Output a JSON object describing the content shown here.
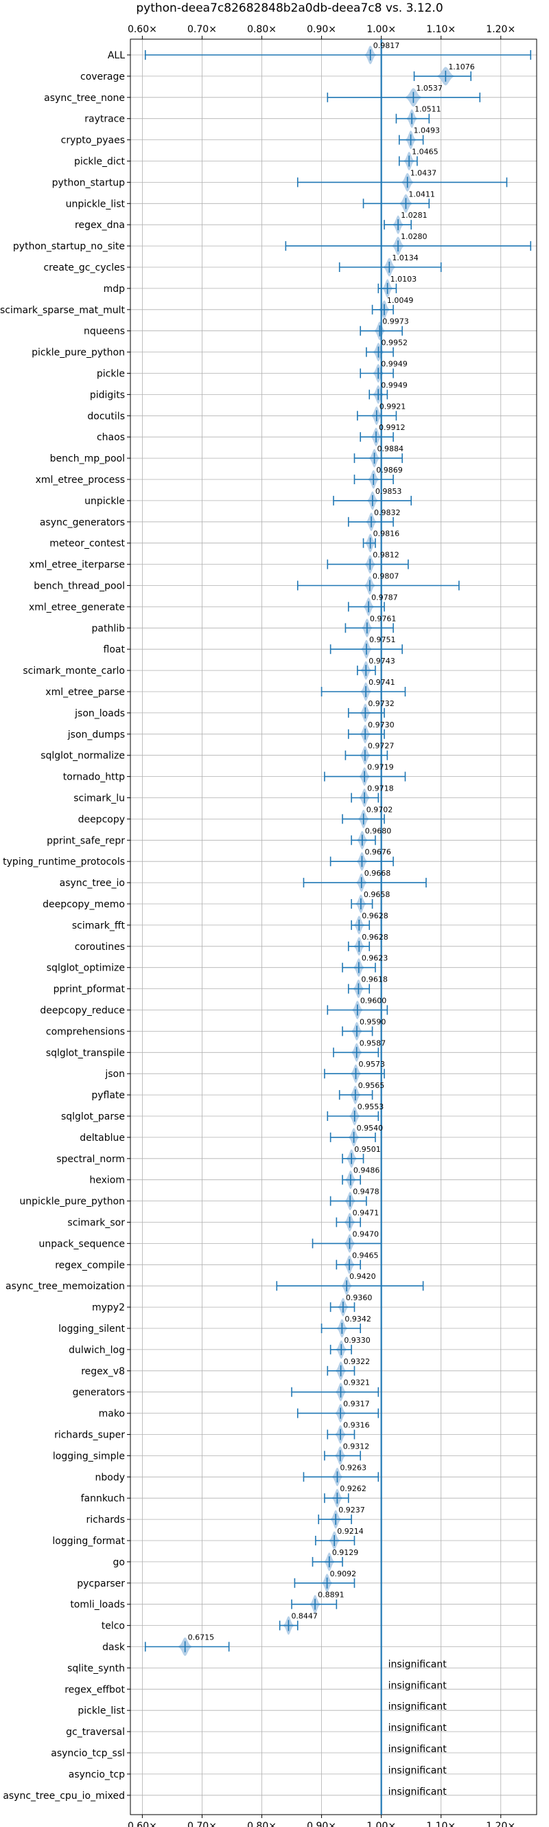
{
  "chart_data": {
    "type": "violin",
    "title": "python-deea7c82682848b2a0db-deea7c8 vs. 3.12.0",
    "xlim": [
      0.58,
      1.26
    ],
    "xticks": [
      0.6,
      0.7,
      0.8,
      0.9,
      1.0,
      1.1,
      1.2
    ],
    "xtick_labels": [
      "0.60×",
      "0.70×",
      "0.80×",
      "0.90×",
      "1.00×",
      "1.10×",
      "1.20×"
    ],
    "reference_line": 1.0,
    "grid": true,
    "colors": {
      "line": "#1f77b4",
      "violin": "#aecbe5",
      "grid": "#b0b0b0"
    },
    "insignificant_text": "insignificant",
    "benchmarks": [
      {
        "name": "ALL",
        "value": 0.9817,
        "label": "0.9817",
        "min": 0.605,
        "max": 1.25,
        "width": 0.0038
      },
      {
        "name": "coverage",
        "value": 1.1076,
        "label": "1.1076",
        "min": 1.055,
        "max": 1.15,
        "width": 0.0058
      },
      {
        "name": "async_tree_none",
        "value": 1.0537,
        "label": "1.0537",
        "min": 0.91,
        "max": 1.165,
        "width": 0.0055
      },
      {
        "name": "raytrace",
        "value": 1.0511,
        "label": "1.0511",
        "min": 1.025,
        "max": 1.08,
        "width": 0.0035
      },
      {
        "name": "crypto_pyaes",
        "value": 1.0493,
        "label": "1.0493",
        "min": 1.03,
        "max": 1.07,
        "width": 0.0035
      },
      {
        "name": "pickle_dict",
        "value": 1.0465,
        "label": "1.0465",
        "min": 1.03,
        "max": 1.06,
        "width": 0.0035
      },
      {
        "name": "python_startup",
        "value": 1.0437,
        "label": "1.0437",
        "min": 0.86,
        "max": 1.21,
        "width": 0.004
      },
      {
        "name": "unpickle_list",
        "value": 1.0411,
        "label": "1.0411",
        "min": 0.97,
        "max": 1.08,
        "width": 0.0042
      },
      {
        "name": "regex_dna",
        "value": 1.0281,
        "label": "1.0281",
        "min": 1.005,
        "max": 1.05,
        "width": 0.0035
      },
      {
        "name": "python_startup_no_site",
        "value": 1.028,
        "label": "1.0280",
        "min": 0.84,
        "max": 1.25,
        "width": 0.004
      },
      {
        "name": "create_gc_cycles",
        "value": 1.0134,
        "label": "1.0134",
        "min": 0.93,
        "max": 1.1,
        "width": 0.004
      },
      {
        "name": "mdp",
        "value": 1.0103,
        "label": "1.0103",
        "min": 0.995,
        "max": 1.025,
        "width": 0.0035
      },
      {
        "name": "scimark_sparse_mat_mult",
        "value": 1.0049,
        "label": "1.0049",
        "min": 0.985,
        "max": 1.02,
        "width": 0.0035
      },
      {
        "name": "nqueens",
        "value": 0.9973,
        "label": "0.9973",
        "min": 0.965,
        "max": 1.035,
        "width": 0.0035
      },
      {
        "name": "pickle_pure_python",
        "value": 0.9952,
        "label": "0.9952",
        "min": 0.975,
        "max": 1.02,
        "width": 0.0035
      },
      {
        "name": "pickle",
        "value": 0.9949,
        "label": "0.9949",
        "min": 0.965,
        "max": 1.02,
        "width": 0.0035
      },
      {
        "name": "pidigits",
        "value": 0.9949,
        "label": "0.9949",
        "min": 0.98,
        "max": 1.01,
        "width": 0.0035
      },
      {
        "name": "docutils",
        "value": 0.9921,
        "label": "0.9921",
        "min": 0.96,
        "max": 1.025,
        "width": 0.0035
      },
      {
        "name": "chaos",
        "value": 0.9912,
        "label": "0.9912",
        "min": 0.965,
        "max": 1.02,
        "width": 0.0035
      },
      {
        "name": "bench_mp_pool",
        "value": 0.9884,
        "label": "0.9884",
        "min": 0.955,
        "max": 1.035,
        "width": 0.0035
      },
      {
        "name": "xml_etree_process",
        "value": 0.9869,
        "label": "0.9869",
        "min": 0.955,
        "max": 1.02,
        "width": 0.0035
      },
      {
        "name": "unpickle",
        "value": 0.9853,
        "label": "0.9853",
        "min": 0.92,
        "max": 1.05,
        "width": 0.0035
      },
      {
        "name": "async_generators",
        "value": 0.9832,
        "label": "0.9832",
        "min": 0.945,
        "max": 1.02,
        "width": 0.0035
      },
      {
        "name": "meteor_contest",
        "value": 0.9816,
        "label": "0.9816",
        "min": 0.97,
        "max": 0.99,
        "width": 0.0035
      },
      {
        "name": "xml_etree_iterparse",
        "value": 0.9812,
        "label": "0.9812",
        "min": 0.91,
        "max": 1.045,
        "width": 0.0035
      },
      {
        "name": "bench_thread_pool",
        "value": 0.9807,
        "label": "0.9807",
        "min": 0.86,
        "max": 1.13,
        "width": 0.0035
      },
      {
        "name": "xml_etree_generate",
        "value": 0.9787,
        "label": "0.9787",
        "min": 0.945,
        "max": 1.005,
        "width": 0.0035
      },
      {
        "name": "pathlib",
        "value": 0.9761,
        "label": "0.9761",
        "min": 0.94,
        "max": 1.02,
        "width": 0.0035
      },
      {
        "name": "float",
        "value": 0.9751,
        "label": "0.9751",
        "min": 0.915,
        "max": 1.035,
        "width": 0.0035
      },
      {
        "name": "scimark_monte_carlo",
        "value": 0.9743,
        "label": "0.9743",
        "min": 0.96,
        "max": 0.99,
        "width": 0.0035
      },
      {
        "name": "xml_etree_parse",
        "value": 0.9741,
        "label": "0.9741",
        "min": 0.9,
        "max": 1.04,
        "width": 0.0035
      },
      {
        "name": "json_loads",
        "value": 0.9732,
        "label": "0.9732",
        "min": 0.945,
        "max": 1.005,
        "width": 0.0035
      },
      {
        "name": "json_dumps",
        "value": 0.973,
        "label": "0.9730",
        "min": 0.945,
        "max": 1.005,
        "width": 0.0035
      },
      {
        "name": "sqlglot_normalize",
        "value": 0.9727,
        "label": "0.9727",
        "min": 0.94,
        "max": 1.01,
        "width": 0.0035
      },
      {
        "name": "tornado_http",
        "value": 0.9719,
        "label": "0.9719",
        "min": 0.905,
        "max": 1.04,
        "width": 0.0035
      },
      {
        "name": "scimark_lu",
        "value": 0.9718,
        "label": "0.9718",
        "min": 0.95,
        "max": 0.995,
        "width": 0.0035
      },
      {
        "name": "deepcopy",
        "value": 0.9702,
        "label": "0.9702",
        "min": 0.935,
        "max": 1.005,
        "width": 0.0035
      },
      {
        "name": "pprint_safe_repr",
        "value": 0.968,
        "label": "0.9680",
        "min": 0.95,
        "max": 0.99,
        "width": 0.0035
      },
      {
        "name": "typing_runtime_protocols",
        "value": 0.9676,
        "label": "0.9676",
        "min": 0.915,
        "max": 1.02,
        "width": 0.0035
      },
      {
        "name": "async_tree_io",
        "value": 0.9668,
        "label": "0.9668",
        "min": 0.87,
        "max": 1.075,
        "width": 0.0035
      },
      {
        "name": "deepcopy_memo",
        "value": 0.9658,
        "label": "0.9658",
        "min": 0.95,
        "max": 0.985,
        "width": 0.0035
      },
      {
        "name": "scimark_fft",
        "value": 0.9628,
        "label": "0.9628",
        "min": 0.95,
        "max": 0.98,
        "width": 0.0035
      },
      {
        "name": "coroutines",
        "value": 0.9628,
        "label": "0.9628",
        "min": 0.945,
        "max": 0.98,
        "width": 0.0035
      },
      {
        "name": "sqlglot_optimize",
        "value": 0.9623,
        "label": "0.9623",
        "min": 0.935,
        "max": 0.99,
        "width": 0.0035
      },
      {
        "name": "pprint_pformat",
        "value": 0.9618,
        "label": "0.9618",
        "min": 0.945,
        "max": 0.98,
        "width": 0.0035
      },
      {
        "name": "deepcopy_reduce",
        "value": 0.96,
        "label": "0.9600",
        "min": 0.91,
        "max": 1.01,
        "width": 0.0035
      },
      {
        "name": "comprehensions",
        "value": 0.959,
        "label": "0.9590",
        "min": 0.935,
        "max": 0.985,
        "width": 0.0035
      },
      {
        "name": "sqlglot_transpile",
        "value": 0.9587,
        "label": "0.9587",
        "min": 0.92,
        "max": 0.995,
        "width": 0.0035
      },
      {
        "name": "json",
        "value": 0.9573,
        "label": "0.9573",
        "min": 0.905,
        "max": 1.005,
        "width": 0.0035
      },
      {
        "name": "pyflate",
        "value": 0.9565,
        "label": "0.9565",
        "min": 0.93,
        "max": 0.985,
        "width": 0.0035
      },
      {
        "name": "sqlglot_parse",
        "value": 0.9553,
        "label": "0.9553",
        "min": 0.91,
        "max": 0.995,
        "width": 0.0035
      },
      {
        "name": "deltablue",
        "value": 0.954,
        "label": "0.9540",
        "min": 0.915,
        "max": 0.99,
        "width": 0.0035
      },
      {
        "name": "spectral_norm",
        "value": 0.9501,
        "label": "0.9501",
        "min": 0.935,
        "max": 0.97,
        "width": 0.0035
      },
      {
        "name": "hexiom",
        "value": 0.9486,
        "label": "0.9486",
        "min": 0.935,
        "max": 0.965,
        "width": 0.0035
      },
      {
        "name": "unpickle_pure_python",
        "value": 0.9478,
        "label": "0.9478",
        "min": 0.915,
        "max": 0.975,
        "width": 0.0035
      },
      {
        "name": "scimark_sor",
        "value": 0.9471,
        "label": "0.9471",
        "min": 0.925,
        "max": 0.965,
        "width": 0.0035
      },
      {
        "name": "unpack_sequence",
        "value": 0.947,
        "label": "0.9470",
        "min": 0.885,
        "max": 1.0,
        "width": 0.0035
      },
      {
        "name": "regex_compile",
        "value": 0.9465,
        "label": "0.9465",
        "min": 0.925,
        "max": 0.965,
        "width": 0.0035
      },
      {
        "name": "async_tree_memoization",
        "value": 0.942,
        "label": "0.9420",
        "min": 0.825,
        "max": 1.07,
        "width": 0.0035
      },
      {
        "name": "mypy2",
        "value": 0.936,
        "label": "0.9360",
        "min": 0.915,
        "max": 0.955,
        "width": 0.0035
      },
      {
        "name": "logging_silent",
        "value": 0.9342,
        "label": "0.9342",
        "min": 0.9,
        "max": 0.965,
        "width": 0.0035
      },
      {
        "name": "dulwich_log",
        "value": 0.933,
        "label": "0.9330",
        "min": 0.915,
        "max": 0.95,
        "width": 0.0035
      },
      {
        "name": "regex_v8",
        "value": 0.9322,
        "label": "0.9322",
        "min": 0.91,
        "max": 0.955,
        "width": 0.0035
      },
      {
        "name": "generators",
        "value": 0.9321,
        "label": "0.9321",
        "min": 0.85,
        "max": 0.995,
        "width": 0.0035
      },
      {
        "name": "mako",
        "value": 0.9317,
        "label": "0.9317",
        "min": 0.86,
        "max": 0.995,
        "width": 0.0035
      },
      {
        "name": "richards_super",
        "value": 0.9316,
        "label": "0.9316",
        "min": 0.91,
        "max": 0.955,
        "width": 0.0035
      },
      {
        "name": "logging_simple",
        "value": 0.9312,
        "label": "0.9312",
        "min": 0.905,
        "max": 0.965,
        "width": 0.0035
      },
      {
        "name": "nbody",
        "value": 0.9263,
        "label": "0.9263",
        "min": 0.87,
        "max": 0.995,
        "width": 0.0035
      },
      {
        "name": "fannkuch",
        "value": 0.9262,
        "label": "0.9262",
        "min": 0.905,
        "max": 0.945,
        "width": 0.0035
      },
      {
        "name": "richards",
        "value": 0.9237,
        "label": "0.9237",
        "min": 0.895,
        "max": 0.95,
        "width": 0.0035
      },
      {
        "name": "logging_format",
        "value": 0.9214,
        "label": "0.9214",
        "min": 0.89,
        "max": 0.955,
        "width": 0.0035
      },
      {
        "name": "go",
        "value": 0.9129,
        "label": "0.9129",
        "min": 0.885,
        "max": 0.935,
        "width": 0.0035
      },
      {
        "name": "pycparser",
        "value": 0.9092,
        "label": "0.9092",
        "min": 0.855,
        "max": 0.955,
        "width": 0.0035
      },
      {
        "name": "tomli_loads",
        "value": 0.8891,
        "label": "0.8891",
        "min": 0.85,
        "max": 0.925,
        "width": 0.0035
      },
      {
        "name": "telco",
        "value": 0.8447,
        "label": "0.8447",
        "min": 0.83,
        "max": 0.86,
        "width": 0.0035
      },
      {
        "name": "dask",
        "value": 0.6715,
        "label": "0.6715",
        "min": 0.605,
        "max": 0.745,
        "width": 0.0045
      },
      {
        "name": "sqlite_synth",
        "insignificant": true
      },
      {
        "name": "regex_effbot",
        "insignificant": true
      },
      {
        "name": "pickle_list",
        "insignificant": true
      },
      {
        "name": "gc_traversal",
        "insignificant": true
      },
      {
        "name": "asyncio_tcp_ssl",
        "insignificant": true
      },
      {
        "name": "asyncio_tcp",
        "insignificant": true
      },
      {
        "name": "async_tree_cpu_io_mixed",
        "insignificant": true
      }
    ]
  }
}
